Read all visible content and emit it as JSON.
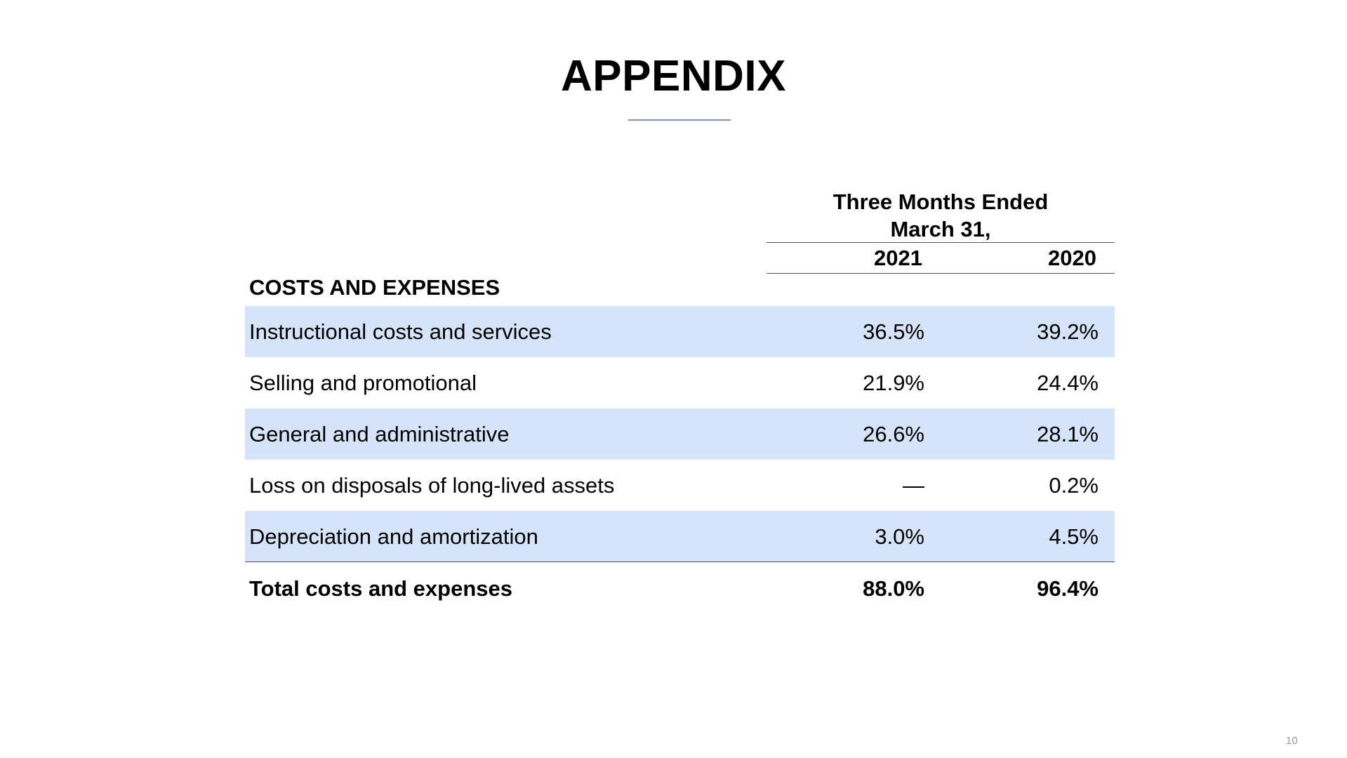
{
  "slide": {
    "title": "APPENDIX",
    "page_number": "10"
  },
  "table": {
    "period_header_line1": "Three Months Ended",
    "period_header_line2": "March 31,",
    "columns": [
      "2021",
      "2020"
    ],
    "section_label": "COSTS AND EXPENSES",
    "rows": [
      {
        "label": "Instructional costs and services",
        "v2021": "36.5%",
        "v2020": "39.2%",
        "shaded": true
      },
      {
        "label": "Selling and promotional",
        "v2021": "21.9%",
        "v2020": "24.4%",
        "shaded": false
      },
      {
        "label": "General and administrative",
        "v2021": "26.6%",
        "v2020": "28.1%",
        "shaded": true
      },
      {
        "label": "Loss on disposals of long-lived assets",
        "v2021": "—",
        "v2020": "0.2%",
        "shaded": false
      },
      {
        "label": "Depreciation and amortization",
        "v2021": "3.0%",
        "v2020": "4.5%",
        "shaded": true
      }
    ],
    "total": {
      "label": "Total costs and expenses",
      "v2021": "88.0%",
      "v2020": "96.4%"
    }
  },
  "colors": {
    "row_shade": "#d6e4fa",
    "title_rule": "#7f93b3",
    "page_number": "#9a9a9a"
  }
}
